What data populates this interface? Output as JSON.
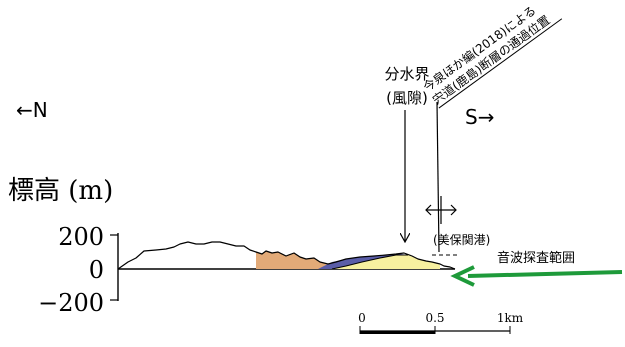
{
  "direction": {
    "north": "←N",
    "south": "S→"
  },
  "elevation_axis": {
    "title": "標高 (m)",
    "ticks": [
      "200",
      "0",
      "−200"
    ]
  },
  "annotations": {
    "divide_line1": "分水界",
    "divide_line2": "(風隙)",
    "fault_line1": "今泉ほか編(2018)による",
    "fault_line2": "宍道(鹿島)断層の通過位置",
    "port": "(美保関港)",
    "sonar": "音波探査範囲"
  },
  "scale_bar": {
    "labels": [
      "0",
      "0.5",
      "1km"
    ]
  },
  "colors": {
    "terrain_outline": "#000000",
    "orange_unit": "#e2aa78",
    "purple_unit": "#5a5da8",
    "yellow_unit": "#f7f0a0",
    "sonar_arrow": "#1e9a3a"
  }
}
